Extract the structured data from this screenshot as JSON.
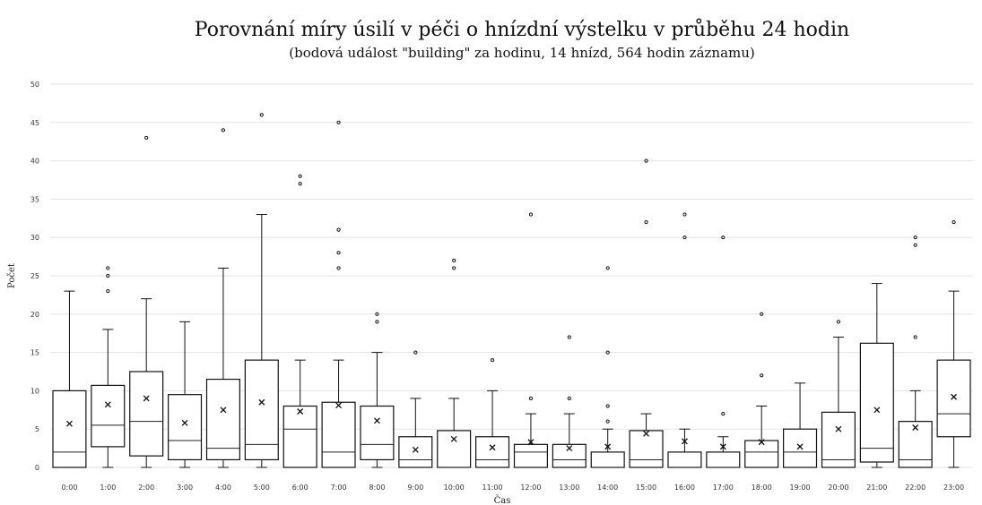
{
  "chart_data": {
    "type": "box",
    "title": "Porovnání míry úsilí v péči o hnízdní výstelku v průběhu 24 hodin",
    "subtitle": "(bodová událost \"building\" za hodinu, 14 hnízd, 564 hodin záznamu)",
    "xlabel": "Čas",
    "ylabel": "Počet",
    "ylim": [
      0,
      50
    ],
    "yticks": [
      0,
      5,
      10,
      15,
      20,
      25,
      30,
      35,
      40,
      45,
      50
    ],
    "grid": "horizontal",
    "categories": [
      "0:00",
      "1:00",
      "2:00",
      "3:00",
      "4:00",
      "5:00",
      "6:00",
      "7:00",
      "8:00",
      "9:00",
      "10:00",
      "11:00",
      "12:00",
      "13:00",
      "14:00",
      "15:00",
      "16:00",
      "17:00",
      "18:00",
      "19:00",
      "20:00",
      "21:00",
      "22:00",
      "23:00"
    ],
    "boxes": [
      {
        "min": 0,
        "q1": 0,
        "median": 2,
        "q3": 10,
        "max": 23,
        "mean": 5.7,
        "outliers": []
      },
      {
        "min": 0,
        "q1": 2.7,
        "median": 5.5,
        "q3": 10.7,
        "max": 18,
        "mean": 8.2,
        "outliers": [
          23,
          25,
          26
        ]
      },
      {
        "min": 0,
        "q1": 1.5,
        "median": 6,
        "q3": 12.5,
        "max": 22,
        "mean": 9.0,
        "outliers": [
          43
        ]
      },
      {
        "min": 0,
        "q1": 1,
        "median": 3.5,
        "q3": 9.5,
        "max": 19,
        "mean": 5.8,
        "outliers": []
      },
      {
        "min": 0,
        "q1": 1,
        "median": 2.5,
        "q3": 11.5,
        "max": 26,
        "mean": 7.5,
        "outliers": [
          44
        ]
      },
      {
        "min": 0,
        "q1": 1,
        "median": 3,
        "q3": 14,
        "max": 33,
        "mean": 8.5,
        "outliers": [
          46
        ]
      },
      {
        "min": 0,
        "q1": 0,
        "median": 5,
        "q3": 8,
        "max": 14,
        "mean": 7.3,
        "outliers": [
          37,
          38
        ]
      },
      {
        "min": 0,
        "q1": 0,
        "median": 2,
        "q3": 8.5,
        "max": 14,
        "mean": 8.1,
        "outliers": [
          26,
          28,
          31,
          45
        ]
      },
      {
        "min": 0,
        "q1": 1,
        "median": 3,
        "q3": 8,
        "max": 15,
        "mean": 6.1,
        "outliers": [
          19,
          20
        ]
      },
      {
        "min": 0,
        "q1": 0,
        "median": 1,
        "q3": 4,
        "max": 9,
        "mean": 2.3,
        "outliers": [
          15
        ]
      },
      {
        "min": 0,
        "q1": 0,
        "median": 0,
        "q3": 4.8,
        "max": 9,
        "mean": 3.7,
        "outliers": [
          26,
          27
        ]
      },
      {
        "min": 0,
        "q1": 0,
        "median": 1,
        "q3": 4,
        "max": 10,
        "mean": 2.6,
        "outliers": [
          14
        ]
      },
      {
        "min": 0,
        "q1": 0,
        "median": 2,
        "q3": 3,
        "max": 7,
        "mean": 3.3,
        "outliers": [
          9,
          33
        ]
      },
      {
        "min": 0,
        "q1": 0,
        "median": 1,
        "q3": 3,
        "max": 7,
        "mean": 2.5,
        "outliers": [
          9,
          17
        ]
      },
      {
        "min": 0,
        "q1": 0,
        "median": 0,
        "q3": 2,
        "max": 5,
        "mean": 2.7,
        "outliers": [
          6,
          8,
          15,
          26
        ]
      },
      {
        "min": 0,
        "q1": 0,
        "median": 1,
        "q3": 4.8,
        "max": 7,
        "mean": 4.4,
        "outliers": [
          32,
          40
        ]
      },
      {
        "min": 0,
        "q1": 0,
        "median": 0,
        "q3": 2,
        "max": 5,
        "mean": 3.4,
        "outliers": [
          30,
          33
        ]
      },
      {
        "min": 0,
        "q1": 0,
        "median": 0,
        "q3": 2,
        "max": 4,
        "mean": 2.7,
        "outliers": [
          7,
          30
        ]
      },
      {
        "min": 0,
        "q1": 0,
        "median": 2,
        "q3": 3.5,
        "max": 8,
        "mean": 3.3,
        "outliers": [
          12,
          20
        ]
      },
      {
        "min": 0,
        "q1": 0,
        "median": 2,
        "q3": 5,
        "max": 11,
        "mean": 2.7,
        "outliers": []
      },
      {
        "min": 0,
        "q1": 0,
        "median": 1,
        "q3": 7.2,
        "max": 17,
        "mean": 5.0,
        "outliers": [
          19
        ]
      },
      {
        "min": 0,
        "q1": 0.7,
        "median": 2.5,
        "q3": 16.2,
        "max": 24,
        "mean": 7.5,
        "outliers": []
      },
      {
        "min": 0,
        "q1": 0,
        "median": 1,
        "q3": 6,
        "max": 10,
        "mean": 5.2,
        "outliers": [
          17,
          29,
          30
        ]
      },
      {
        "min": 0,
        "q1": 4,
        "median": 7,
        "q3": 14,
        "max": 23,
        "mean": 9.2,
        "outliers": [
          32
        ]
      }
    ]
  }
}
